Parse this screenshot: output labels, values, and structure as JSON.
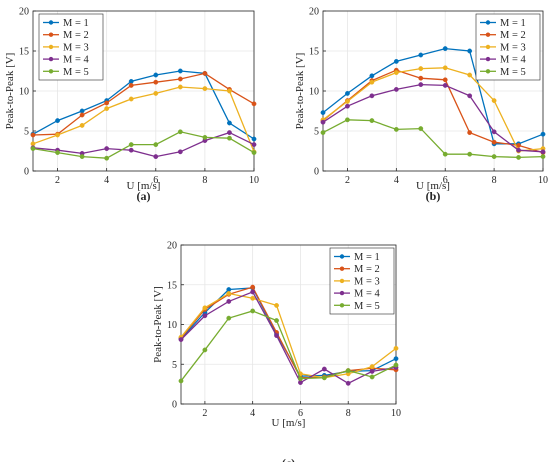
{
  "colors": {
    "series": [
      "#0072BD",
      "#D95319",
      "#EDB120",
      "#7E2F8E",
      "#77AC30"
    ],
    "axis": "#262626",
    "grid": "#E6E6E6"
  },
  "chart_data": [
    {
      "type": "line",
      "panel_label": "(a)",
      "xlabel": "U [m/s]",
      "ylabel": "Peak-to-Peak [V]",
      "xlim": [
        1,
        10
      ],
      "ylim": [
        0,
        20
      ],
      "xticks": [
        2,
        4,
        6,
        8,
        10
      ],
      "yticks": [
        0,
        5,
        10,
        15,
        20
      ],
      "grid": true,
      "legend_position": "top-left",
      "x": [
        1,
        2,
        3,
        4,
        5,
        6,
        7,
        8,
        9,
        10
      ],
      "series": [
        {
          "name": "M = 1",
          "values": [
            4.6,
            6.3,
            7.5,
            8.8,
            11.2,
            12.0,
            12.5,
            12.2,
            6.0,
            4.0
          ]
        },
        {
          "name": "M = 2",
          "values": [
            4.5,
            4.6,
            7.0,
            8.5,
            10.7,
            11.1,
            11.5,
            12.2,
            10.2,
            8.4
          ]
        },
        {
          "name": "M = 3",
          "values": [
            3.4,
            4.5,
            5.7,
            7.8,
            9.0,
            9.7,
            10.5,
            10.3,
            10.0,
            2.4
          ]
        },
        {
          "name": "M = 4",
          "values": [
            2.9,
            2.6,
            2.2,
            2.8,
            2.6,
            1.8,
            2.4,
            3.8,
            4.8,
            3.3
          ]
        },
        {
          "name": "M = 5",
          "values": [
            2.8,
            2.3,
            1.8,
            1.6,
            3.3,
            3.3,
            4.9,
            4.2,
            4.1,
            2.3
          ]
        }
      ]
    },
    {
      "type": "line",
      "panel_label": "(b)",
      "xlabel": "U [m/s]",
      "ylabel": "Peak-to-Peak [V]",
      "xlim": [
        1,
        10
      ],
      "ylim": [
        0,
        20
      ],
      "xticks": [
        2,
        4,
        6,
        8,
        10
      ],
      "yticks": [
        0,
        5,
        10,
        15,
        20
      ],
      "grid": true,
      "legend_position": "top-right",
      "x": [
        1,
        2,
        3,
        4,
        5,
        6,
        7,
        8,
        9,
        10
      ],
      "series": [
        {
          "name": "M = 1",
          "values": [
            7.3,
            9.7,
            11.9,
            13.7,
            14.5,
            15.3,
            15.0,
            3.4,
            3.4,
            4.6
          ]
        },
        {
          "name": "M = 2",
          "values": [
            6.3,
            8.8,
            11.3,
            12.6,
            11.6,
            11.4,
            4.8,
            3.6,
            3.2,
            2.3
          ]
        },
        {
          "name": "M = 3",
          "values": [
            6.4,
            8.7,
            11.1,
            12.3,
            12.8,
            12.9,
            12.0,
            8.8,
            2.5,
            2.8
          ]
        },
        {
          "name": "M = 4",
          "values": [
            6.1,
            8.1,
            9.4,
            10.2,
            10.8,
            10.7,
            9.4,
            4.9,
            2.6,
            2.4
          ]
        },
        {
          "name": "M = 5",
          "values": [
            4.8,
            6.4,
            6.3,
            5.2,
            5.3,
            2.1,
            2.1,
            1.8,
            1.7,
            1.8
          ]
        }
      ]
    },
    {
      "type": "line",
      "panel_label": "(c)",
      "xlabel": "U [m/s]",
      "ylabel": "Peak-to-Peak [V]",
      "xlim": [
        1,
        10
      ],
      "ylim": [
        0,
        20
      ],
      "xticks": [
        2,
        4,
        6,
        8,
        10
      ],
      "yticks": [
        0,
        5,
        10,
        15,
        20
      ],
      "grid": true,
      "legend_position": "outside-right",
      "x": [
        1,
        2,
        3,
        4,
        5,
        6,
        7,
        8,
        9,
        10
      ],
      "series": [
        {
          "name": "M = 1",
          "values": [
            8.2,
            11.5,
            14.4,
            14.6,
            8.8,
            3.5,
            3.6,
            4.1,
            4.2,
            5.7
          ]
        },
        {
          "name": "M = 2",
          "values": [
            8.3,
            11.9,
            13.8,
            14.7,
            9.0,
            3.3,
            3.4,
            4.2,
            4.5,
            4.3
          ]
        },
        {
          "name": "M = 3",
          "values": [
            8.4,
            12.1,
            13.9,
            13.3,
            12.4,
            3.8,
            3.3,
            3.8,
            4.7,
            7.0
          ]
        },
        {
          "name": "M = 4",
          "values": [
            8.1,
            11.1,
            12.9,
            14.1,
            8.6,
            2.7,
            4.4,
            2.6,
            4.1,
            4.6
          ]
        },
        {
          "name": "M = 5",
          "values": [
            2.9,
            6.8,
            10.8,
            11.7,
            10.5,
            3.2,
            3.3,
            4.2,
            3.4,
            4.9
          ]
        }
      ]
    }
  ]
}
